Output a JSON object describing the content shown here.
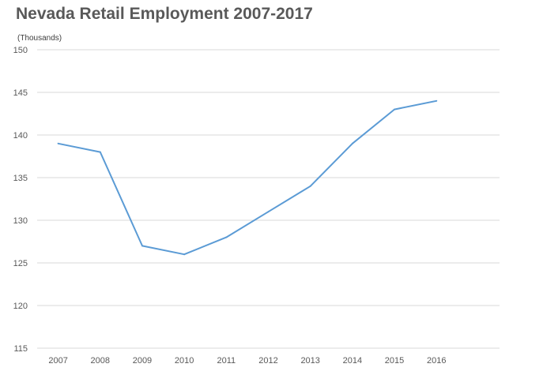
{
  "chart_data": {
    "type": "line",
    "title": "Nevada Retail Employment 2007-2017",
    "ylabel": "(Thousands)",
    "xlabel": "",
    "categories": [
      "2007",
      "2008",
      "2009",
      "2010",
      "2011",
      "2012",
      "2013",
      "2014",
      "2015",
      "2016"
    ],
    "series": [
      {
        "values": [
          139,
          138,
          127,
          126,
          128,
          131,
          134,
          139,
          143,
          144
        ]
      }
    ],
    "ylim": [
      115,
      150
    ],
    "yticks": [
      115,
      120,
      125,
      130,
      135,
      140,
      145,
      150
    ],
    "grid": true,
    "legend": "none",
    "colors": {
      "line": "#5b9bd5",
      "grid": "#d9d9d9",
      "text": "#595959"
    }
  }
}
